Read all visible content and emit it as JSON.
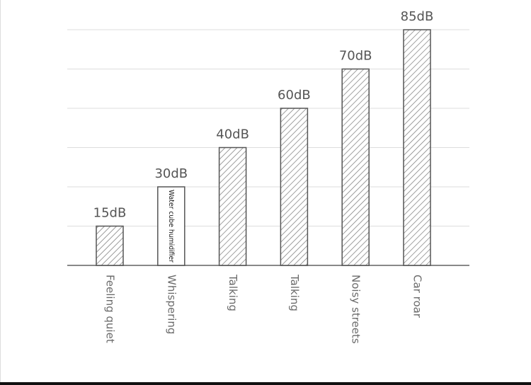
{
  "chart_data": {
    "type": "bar",
    "categories": [
      "Feeling quiet",
      "Whispering",
      "Talking",
      "Talking",
      "Noisy streets",
      "Car roar"
    ],
    "values": [
      15,
      30,
      40,
      60,
      70,
      85
    ],
    "value_labels": [
      "15dB",
      "30dB",
      "40dB",
      "60dB",
      "70dB",
      "85dB"
    ],
    "ylim": [
      0,
      85
    ],
    "yticks": [
      0,
      15,
      30,
      40,
      60,
      70,
      85
    ],
    "yscale": "ordinal",
    "grid": true,
    "color": "#555555",
    "annotations": [
      {
        "index": 1,
        "text": "Water cube humidifier"
      }
    ]
  }
}
